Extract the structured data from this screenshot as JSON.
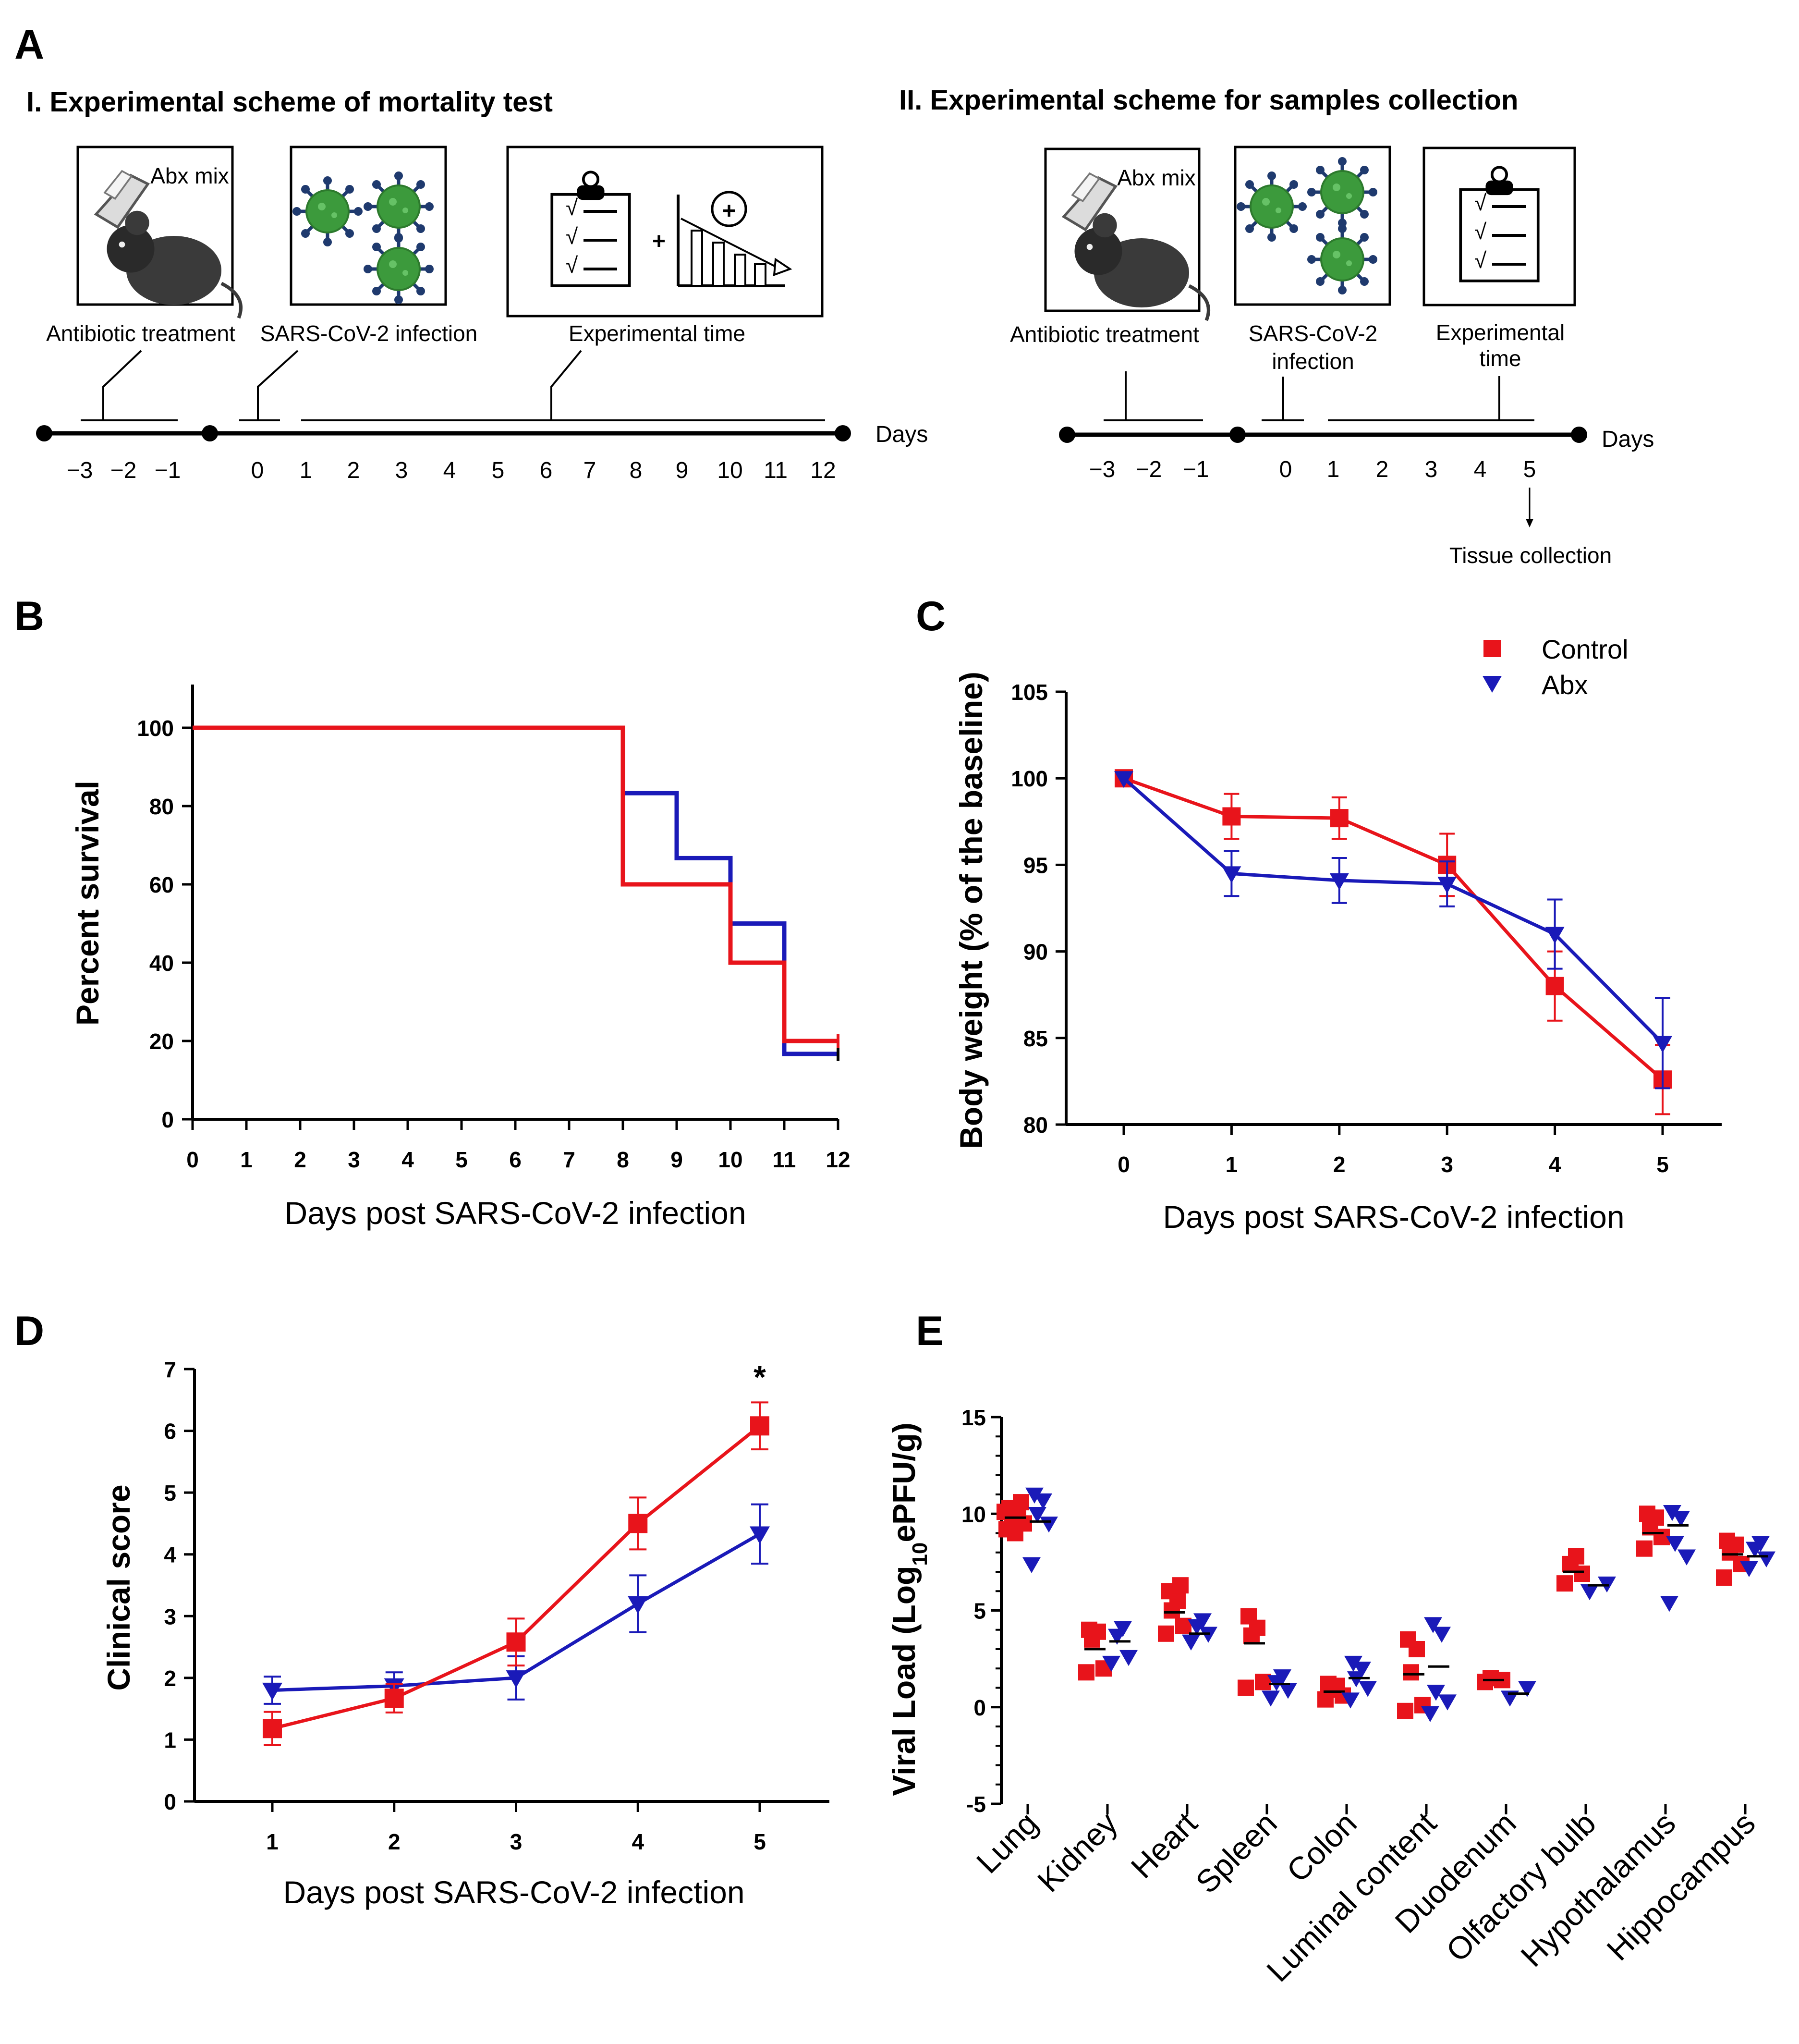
{
  "colors": {
    "control": "#e8141b",
    "abx": "#1a1ab8",
    "virus_green": "#3c9a3c",
    "virus_spike": "#1f3a6e"
  },
  "panel_a": {
    "letter": "A",
    "scheme1": {
      "title": "I. Experimental scheme of mortality test",
      "box_labels": [
        "Antibiotic treatment",
        "SARS-CoV-2 infection",
        "Experimental time"
      ],
      "abx_mix": "Abx mix",
      "plus": "+",
      "check": "√",
      "days_label": "Days",
      "ticks": [
        "−3",
        "−2",
        "−1",
        "0",
        "1",
        "2",
        "3",
        "4",
        "5",
        "6",
        "7",
        "8",
        "9",
        "10",
        "11",
        "12"
      ]
    },
    "scheme2": {
      "title": "II. Experimental scheme for samples collection",
      "box_labels": [
        "Antibiotic treatment",
        "SARS-CoV-2",
        "infection",
        "Experimental",
        "time"
      ],
      "abx_mix": "Abx mix",
      "check": "√",
      "days_label": "Days",
      "ticks": [
        "−3",
        "−2",
        "−1",
        "0",
        "1",
        "2",
        "3",
        "4",
        "5"
      ],
      "tissue_collection": "Tissue collection"
    }
  },
  "chart_data": [
    {
      "panel": "B",
      "type": "line",
      "style": "step (Kaplan-Meier)",
      "xlabel": "Days post SARS-CoV-2 infection",
      "ylabel": "Percent survival",
      "xlim": [
        0,
        12
      ],
      "ylim": [
        0,
        110
      ],
      "xticks": [
        0,
        1,
        2,
        3,
        4,
        5,
        6,
        7,
        8,
        9,
        10,
        11,
        12
      ],
      "yticks": [
        0,
        20,
        40,
        60,
        80,
        100
      ],
      "series": [
        {
          "name": "Control",
          "color": "#e8141b",
          "steps": [
            [
              0,
              100
            ],
            [
              8,
              60
            ],
            [
              10,
              40
            ],
            [
              11,
              20
            ],
            [
              12,
              20
            ]
          ]
        },
        {
          "name": "Abx",
          "color": "#1a1ab8",
          "steps": [
            [
              0,
              100
            ],
            [
              8,
              83.3
            ],
            [
              9,
              66.7
            ],
            [
              10,
              50
            ],
            [
              11,
              16.7
            ],
            [
              12,
              16.7
            ]
          ]
        }
      ]
    },
    {
      "panel": "C",
      "type": "line",
      "xlabel": "Days post SARS-CoV-2 infection",
      "ylabel": "Body weight (% of the baseline)",
      "xlim": [
        -0.5,
        5.5
      ],
      "ylim": [
        80,
        105
      ],
      "xticks": [
        0,
        1,
        2,
        3,
        4,
        5
      ],
      "yticks": [
        80,
        85,
        90,
        95,
        100,
        105
      ],
      "legend": {
        "position": "top-right",
        "entries": [
          "Control",
          "Abx"
        ]
      },
      "series": [
        {
          "name": "Control",
          "marker": "square",
          "color": "#e8141b",
          "x": [
            0,
            1,
            2,
            3,
            4,
            5
          ],
          "y": [
            100,
            97.8,
            97.7,
            95.0,
            88.0,
            82.6
          ],
          "err": [
            0,
            1.3,
            1.2,
            1.8,
            2.0,
            2.0
          ]
        },
        {
          "name": "Abx",
          "marker": "triangle-down",
          "color": "#1a1ab8",
          "x": [
            0,
            1,
            2,
            3,
            4,
            5
          ],
          "y": [
            100,
            94.5,
            94.1,
            93.9,
            91.0,
            84.7
          ],
          "err": [
            0,
            1.3,
            1.3,
            1.3,
            2.0,
            2.6
          ]
        }
      ]
    },
    {
      "panel": "D",
      "type": "line",
      "xlabel": "Days post SARS-CoV-2 infection",
      "ylabel": "Clinical score",
      "xlim": [
        0.4,
        5.6
      ],
      "ylim": [
        0,
        7
      ],
      "xticks": [
        1,
        2,
        3,
        4,
        5
      ],
      "yticks": [
        0,
        1,
        2,
        3,
        4,
        5,
        6,
        7
      ],
      "annotation": {
        "text": "*",
        "x": 5
      },
      "series": [
        {
          "name": "Control",
          "marker": "square",
          "color": "#e8141b",
          "x": [
            1,
            2,
            3,
            4,
            5
          ],
          "y": [
            1.18,
            1.67,
            2.58,
            4.5,
            6.08
          ],
          "err": [
            0.27,
            0.23,
            0.38,
            0.42,
            0.38
          ]
        },
        {
          "name": "Abx",
          "marker": "triangle-down",
          "color": "#1a1ab8",
          "x": [
            1,
            2,
            3,
            4,
            5
          ],
          "y": [
            1.8,
            1.87,
            2.0,
            3.2,
            4.33
          ],
          "err": [
            0.22,
            0.22,
            0.35,
            0.46,
            0.48
          ]
        }
      ]
    },
    {
      "panel": "E",
      "type": "scatter",
      "ylabel_prefix": "Viral  Load (Log",
      "ylabel_sub": "10",
      "ylabel_suffix": "ePFU/g)",
      "ylim": [
        -5,
        15
      ],
      "yticks": [
        -5,
        0,
        5,
        10,
        15
      ],
      "categories": [
        "Lung",
        "Kidney",
        "Heart",
        "Spleen",
        "Colon",
        "Luminal content",
        "Duodenum",
        "Olfactory bulb",
        "Hypothalamus",
        "Hippocampus"
      ],
      "series": [
        {
          "name": "Control",
          "marker": "square",
          "color": "#e8141b",
          "mean": [
            9.8,
            3.0,
            4.9,
            3.3,
            0.8,
            1.7,
            1.4,
            7.0,
            9.0,
            7.9
          ],
          "points": [
            [
              9.2,
              9.5,
              9.8,
              10.0,
              10.3,
              10.6,
              9.0,
              10.1
            ],
            [
              1.8,
              2.0,
              3.5,
              3.9,
              4.0
            ],
            [
              3.8,
              4.2,
              5.0,
              5.5,
              6.0,
              6.3
            ],
            [
              1.0,
              1.3,
              3.7,
              4.1,
              4.7
            ],
            [
              0.4,
              0.6,
              0.9,
              1.1,
              1.2
            ],
            [
              -0.2,
              0.1,
              1.8,
              3.0,
              3.5
            ],
            [
              1.3,
              1.4,
              1.5
            ],
            [
              6.4,
              6.9,
              7.4,
              7.8
            ],
            [
              8.2,
              8.8,
              9.3,
              9.8,
              10.0
            ],
            [
              6.7,
              7.4,
              8.0,
              8.4,
              8.6
            ]
          ]
        },
        {
          "name": "Abx",
          "marker": "triangle-down",
          "color": "#1a1ab8",
          "mean": [
            9.6,
            3.4,
            3.8,
            1.2,
            1.5,
            2.1,
            0.7,
            6.3,
            9.4,
            7.8
          ],
          "points": [
            [
              7.4,
              9.5,
              10.0,
              10.7,
              11.0
            ],
            [
              2.3,
              2.6,
              3.7,
              4.1
            ],
            [
              3.4,
              3.8,
              4.2,
              4.5
            ],
            [
              0.5,
              0.9,
              1.3,
              1.6
            ],
            [
              0.4,
              1.0,
              1.5,
              2.0,
              2.3
            ],
            [
              -0.3,
              0.3,
              0.8,
              3.8,
              4.3
            ],
            [
              0.5,
              1.0
            ],
            [
              6.0,
              6.4
            ],
            [
              5.4,
              7.8,
              8.5,
              9.8,
              10.1
            ],
            [
              7.2,
              7.7,
              8.2,
              8.5
            ]
          ]
        }
      ]
    }
  ]
}
